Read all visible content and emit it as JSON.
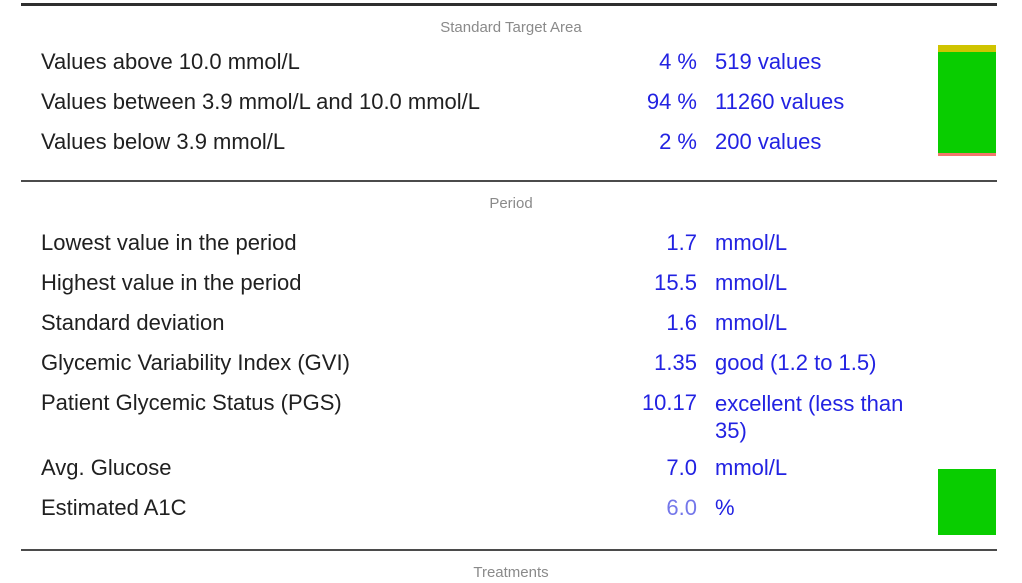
{
  "colors": {
    "value_blue": "#2222e2",
    "value_light_blue": "#7477ea",
    "label_black": "#202020",
    "header_gray": "#8a8a8a",
    "bar_yellow": "#cfc400",
    "bar_green": "#09cd00",
    "bar_salmon": "#f4766c",
    "rule_gray": "#4b4b4b",
    "rule_dark": "#2f2f2f"
  },
  "sections": [
    {
      "title": "Standard Target Area",
      "rows": [
        {
          "label": "Values above 10.0 mmol/L",
          "value": "4 %",
          "unit": "519 values"
        },
        {
          "label": "Values between 3.9 mmol/L and 10.0 mmol/L",
          "value": "94 %",
          "unit": "11260 values"
        },
        {
          "label": "Values below 3.9 mmol/L",
          "value": "2 %",
          "unit": "200 values"
        }
      ],
      "range_bar": {
        "segments": [
          {
            "name": "above-range",
            "percent": 4,
            "color": "#cfc400"
          },
          {
            "name": "in-range",
            "percent": 94,
            "color": "#09cd00"
          },
          {
            "name": "below-range",
            "percent": 2,
            "color": "#f4766c"
          }
        ]
      }
    },
    {
      "title": "Period",
      "rows": [
        {
          "label": "Lowest value in the period",
          "value": "1.7",
          "unit": "mmol/L"
        },
        {
          "label": "Highest value in the period",
          "value": "15.5",
          "unit": "mmol/L"
        },
        {
          "label": "Standard deviation",
          "value": "1.6",
          "unit": "mmol/L"
        },
        {
          "label": "Glycemic Variability Index (GVI)",
          "value": "1.35",
          "unit": "good (1.2 to 1.5)"
        },
        {
          "label": "Patient Glycemic Status (PGS)",
          "value": "10.17",
          "unit": "excellent (less than 35)"
        },
        {
          "label": "Avg. Glucose",
          "value": "7.0",
          "unit": "mmol/L"
        },
        {
          "label": "Estimated A1C",
          "value": "6.0",
          "unit": "%",
          "value_color": "#7477ea"
        }
      ],
      "status_square_color": "#09cd00"
    },
    {
      "title": "Treatments"
    }
  ]
}
